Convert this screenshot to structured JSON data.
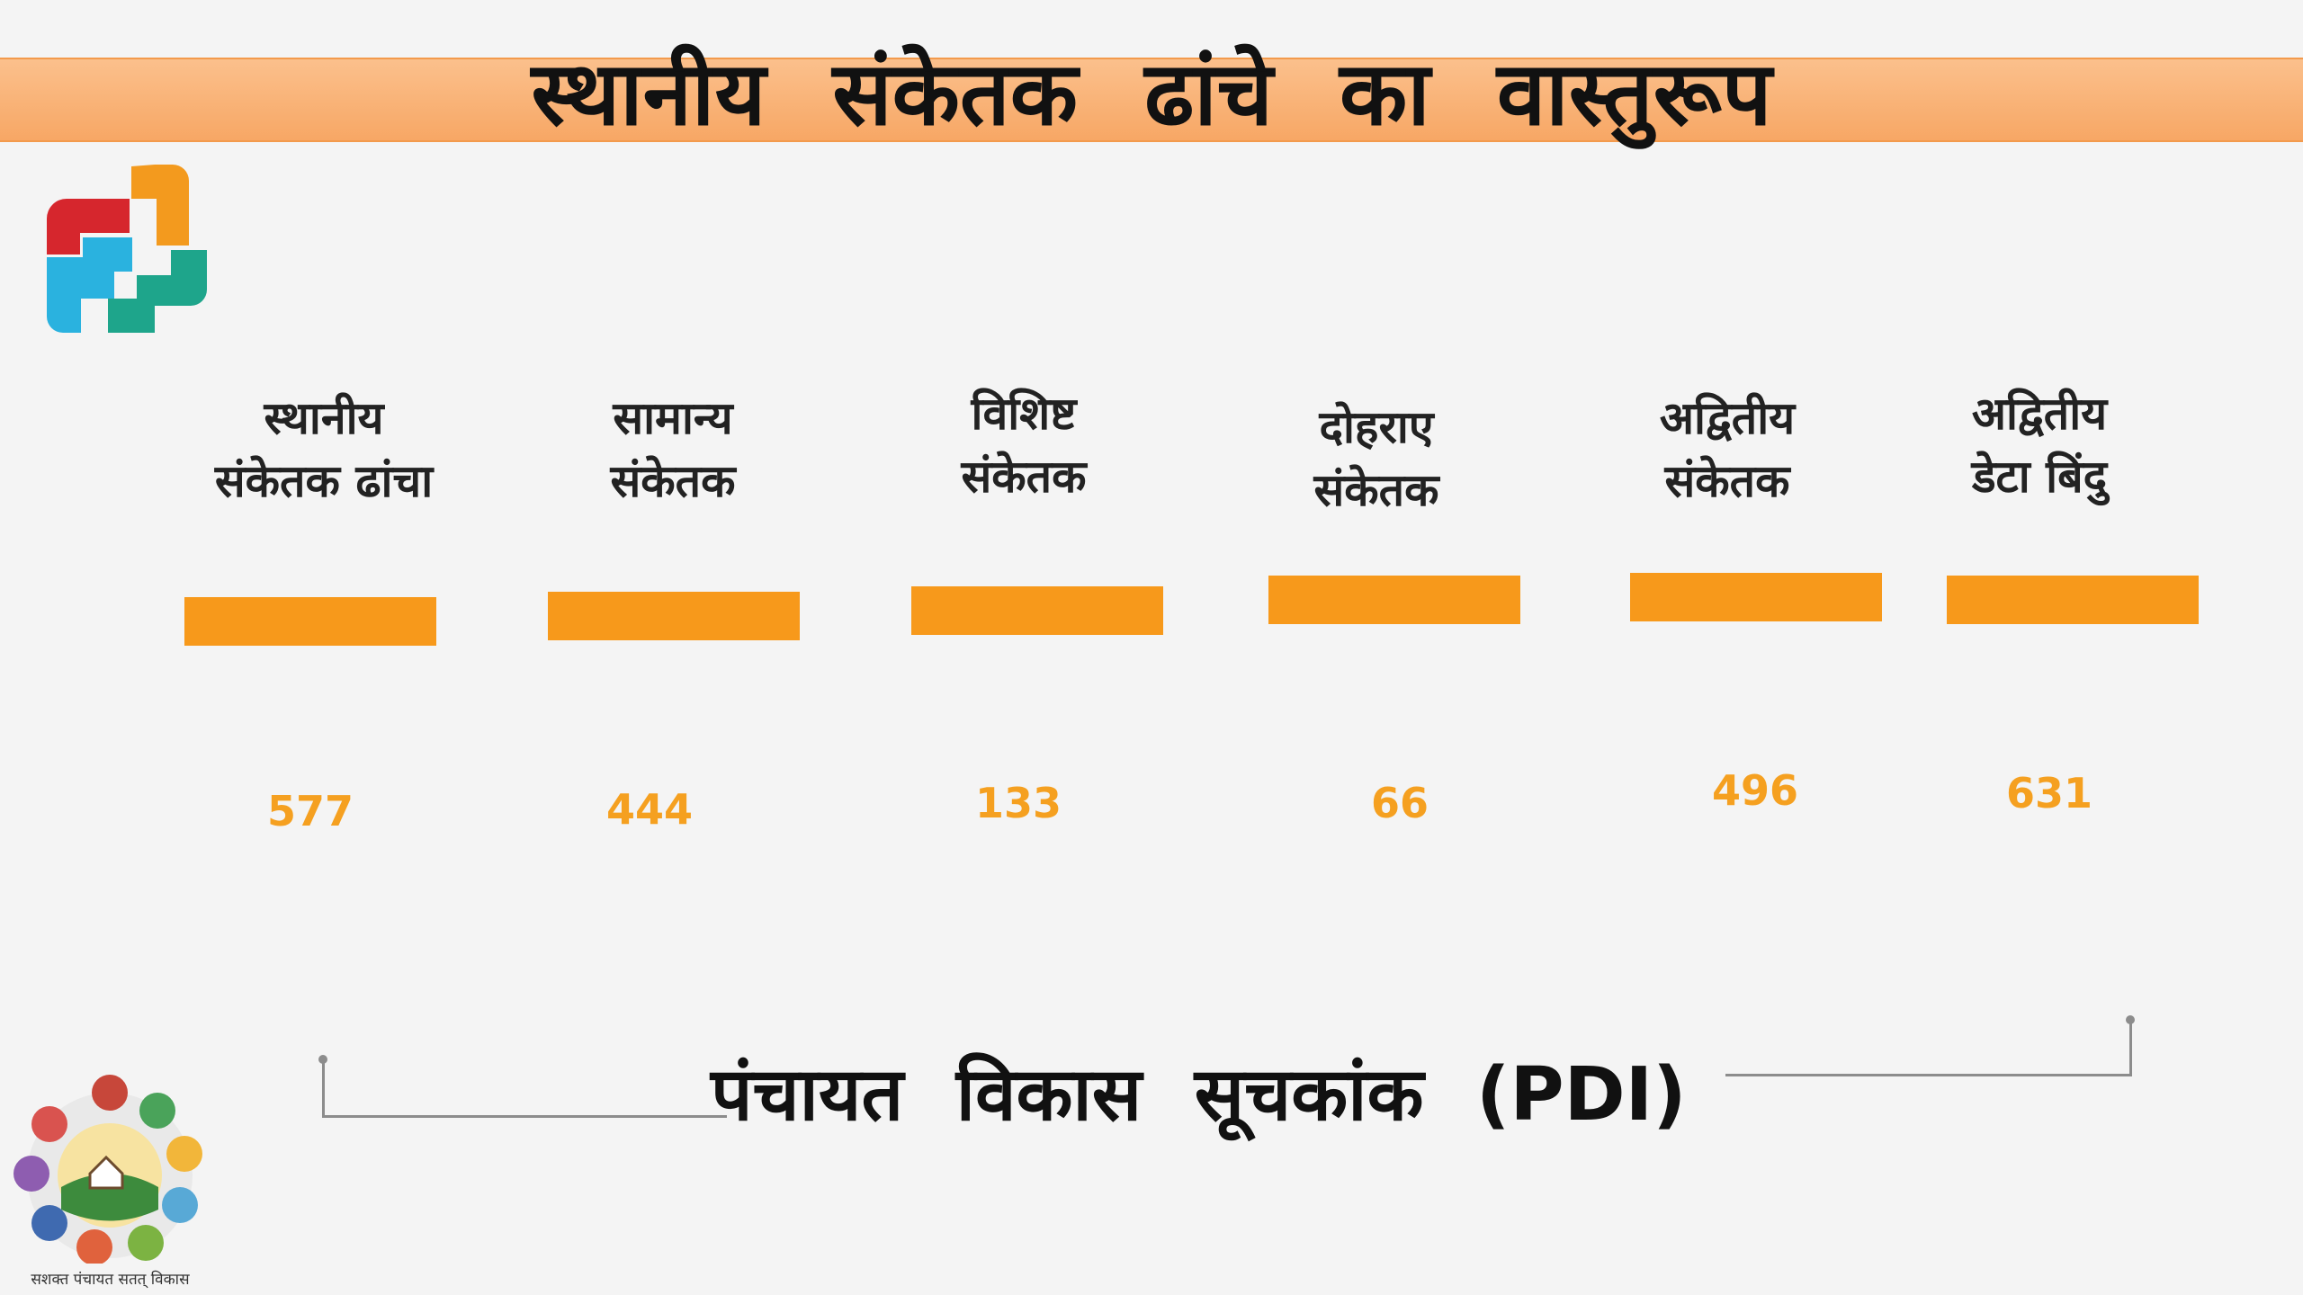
{
  "title": "स्थानीय संकेतक ढांचे का वास्तुरूप",
  "columns": [
    {
      "line1": "स्थानीय",
      "line2": "संकेतक ढांचा",
      "value": "577"
    },
    {
      "line1": "सामान्य",
      "line2": "संकेतक",
      "value": "444"
    },
    {
      "line1": "विशिष्ट",
      "line2": "संकेतक",
      "value": "133"
    },
    {
      "line1": "दोहराए",
      "line2": "संकेतक",
      "value": "66"
    },
    {
      "line1": "अद्वितीय",
      "line2": "संकेतक",
      "value": "496"
    },
    {
      "line1": "अद्वितीय",
      "line2": "डेटा बिंदु",
      "value": "631"
    }
  ],
  "footer": {
    "pdi_label": "पंचायत विकास सूचकांक (PDI)",
    "emblem_caption": "सशक्त पंचायत सतत् विकास"
  },
  "colors": {
    "accent": "#f7991b",
    "title_band": "#f9b478",
    "value_text": "#f5a020"
  },
  "icons": {
    "top_logo": "interlocking-blocks-logo",
    "bottom_emblem": "panchayat-emblem"
  }
}
